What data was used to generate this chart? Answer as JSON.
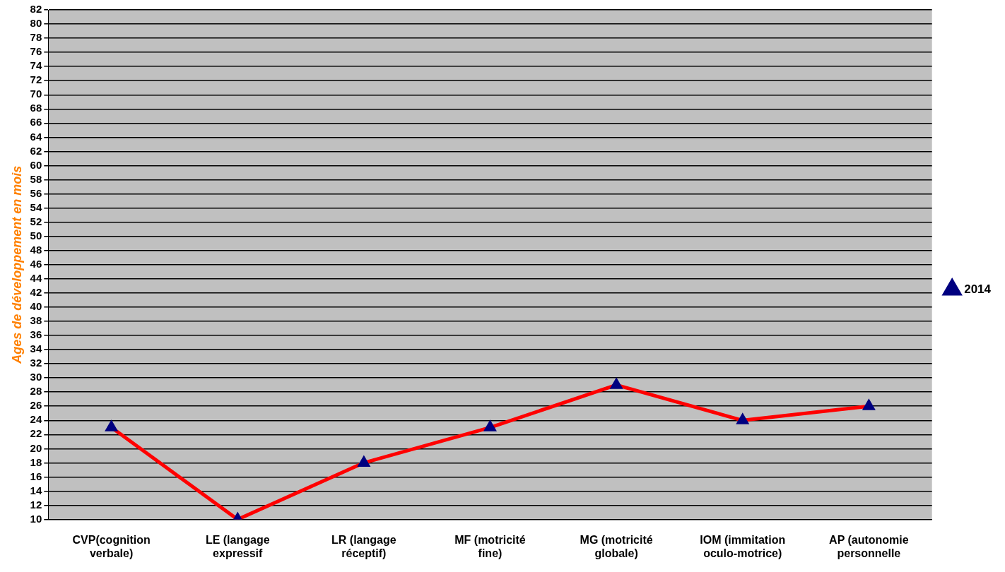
{
  "chart_data": {
    "type": "line",
    "ylabel": "Ages de développement en mois",
    "categories": [
      "CVP(cognition verbale)",
      "LE (langage expressif",
      "LR (langage réceptif)",
      "MF (motricité fine)",
      "MG (motricité globale)",
      "IOM (immitation oculo-motrice)",
      "AP (autonomie personnelle"
    ],
    "series": [
      {
        "name": "2014",
        "color": "#ff0000",
        "values": [
          23,
          10,
          18,
          23,
          29,
          24,
          26
        ]
      }
    ],
    "ylim": [
      10,
      82
    ],
    "yticks": [
      10,
      12,
      14,
      16,
      18,
      20,
      22,
      24,
      26,
      28,
      30,
      32,
      34,
      36,
      38,
      40,
      42,
      44,
      46,
      48,
      50,
      52,
      54,
      56,
      58,
      60,
      62,
      64,
      66,
      68,
      70,
      72,
      74,
      76,
      78,
      80,
      82
    ],
    "grid": "y",
    "legend": "right",
    "marker": "triangle",
    "line_style": "solid"
  }
}
